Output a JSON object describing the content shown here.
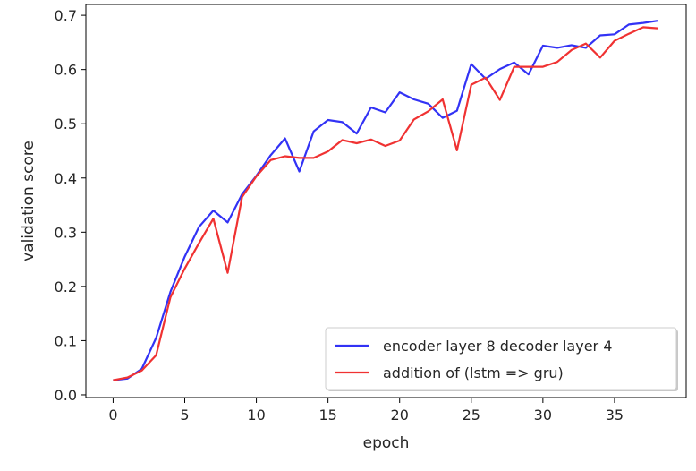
{
  "chart_data": {
    "type": "line",
    "title": "",
    "xlabel": "epoch",
    "ylabel": "validation score",
    "xlim": [
      -1.9,
      40
    ],
    "ylim": [
      -0.005,
      0.72
    ],
    "xticks": [
      0,
      5,
      10,
      15,
      20,
      25,
      30,
      35
    ],
    "yticks": [
      0.0,
      0.1,
      0.2,
      0.3,
      0.4,
      0.5,
      0.6,
      0.7
    ],
    "ytick_labels": [
      "0.0",
      "0.1",
      "0.2",
      "0.3",
      "0.4",
      "0.5",
      "0.6",
      "0.7"
    ],
    "grid": false,
    "legend_position": "lower-right",
    "x": [
      0,
      1,
      2,
      3,
      4,
      5,
      6,
      7,
      8,
      9,
      10,
      11,
      12,
      13,
      14,
      15,
      16,
      17,
      18,
      19,
      20,
      21,
      22,
      23,
      24,
      25,
      26,
      27,
      28,
      29,
      30,
      31,
      32,
      33,
      34,
      35,
      36,
      37,
      38
    ],
    "series": [
      {
        "name": "encoder layer 8 decoder layer 4",
        "color": "#3232f5",
        "values": [
          0.027,
          0.03,
          0.048,
          0.105,
          0.19,
          0.255,
          0.31,
          0.34,
          0.318,
          0.37,
          0.404,
          0.442,
          0.473,
          0.412,
          0.486,
          0.507,
          0.503,
          0.482,
          0.53,
          0.521,
          0.558,
          0.545,
          0.537,
          0.511,
          0.524,
          0.61,
          0.583,
          0.601,
          0.613,
          0.591,
          0.644,
          0.64,
          0.645,
          0.64,
          0.663,
          0.665,
          0.683,
          0.686,
          0.69
        ]
      },
      {
        "name": "addition of (lstm => gru)",
        "color": "#f03232",
        "values": [
          0.027,
          0.032,
          0.045,
          0.073,
          0.18,
          0.233,
          0.28,
          0.325,
          0.225,
          0.365,
          0.403,
          0.433,
          0.44,
          0.437,
          0.437,
          0.449,
          0.47,
          0.464,
          0.471,
          0.459,
          0.469,
          0.508,
          0.523,
          0.545,
          0.451,
          0.572,
          0.585,
          0.544,
          0.605,
          0.605,
          0.605,
          0.614,
          0.636,
          0.648,
          0.622,
          0.653,
          0.666,
          0.678,
          0.676
        ]
      }
    ]
  }
}
